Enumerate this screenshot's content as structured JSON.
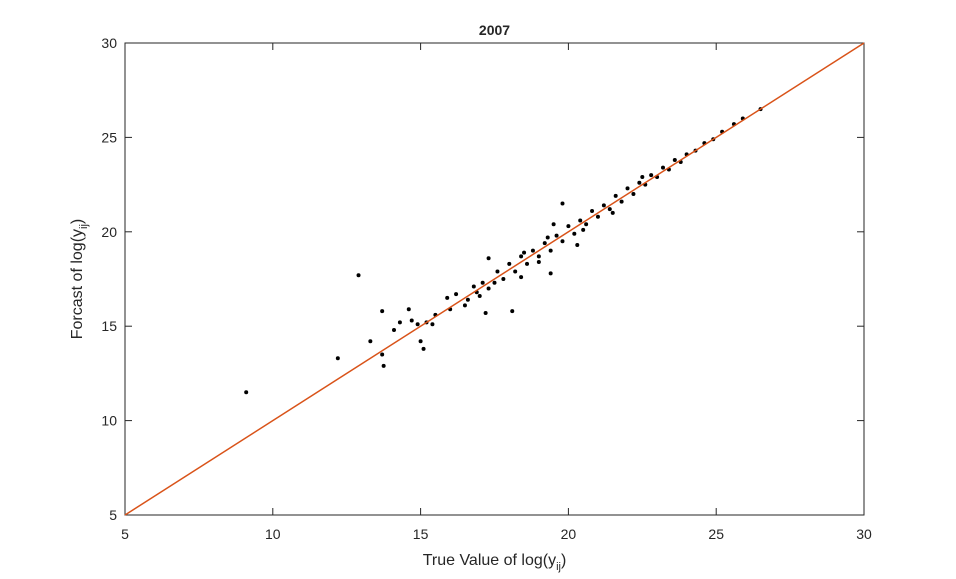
{
  "chart_data": {
    "type": "scatter",
    "title": "2007",
    "xlabel": {
      "text": "True Value of log(y",
      "sub": "ij",
      "end": ")"
    },
    "ylabel": {
      "text": "Forcast of log(y",
      "sub": "ij",
      "end": ")"
    },
    "xlim": [
      5,
      30
    ],
    "ylim": [
      5,
      30
    ],
    "xticks": [
      5,
      10,
      15,
      20,
      25,
      30
    ],
    "yticks": [
      5,
      10,
      15,
      20,
      25,
      30
    ],
    "grid": false,
    "series": [
      {
        "color": "#000000",
        "x": [
          9.1,
          12.2,
          12.9,
          13.3,
          13.7,
          13.75,
          13.7,
          14.1,
          14.3,
          14.6,
          14.7,
          14.9,
          15.0,
          15.1,
          15.2,
          15.4,
          15.5,
          15.9,
          16.0,
          16.2,
          16.5,
          16.8,
          17.2,
          17.3,
          17.5,
          18.1,
          18.4,
          19.0,
          19.4,
          19.5,
          19.8,
          20.3,
          16.6,
          16.9,
          17.1,
          17.3,
          17.6,
          17.8,
          18.0,
          18.2,
          18.4,
          18.6,
          18.8,
          19.0,
          19.2,
          19.4,
          19.6,
          19.8,
          20.0,
          20.2,
          20.4,
          20.6,
          20.8,
          21.0,
          21.2,
          21.4,
          21.6,
          21.8,
          22.0,
          22.2,
          22.4,
          22.6,
          22.8,
          23.0,
          23.2,
          23.4,
          23.6,
          23.8,
          24.0,
          24.3,
          24.6,
          24.9,
          25.2,
          25.6,
          25.9,
          26.5,
          17.0,
          18.5,
          19.3,
          20.5,
          21.5,
          22.5
        ],
        "values": [
          11.5,
          13.3,
          17.7,
          14.2,
          13.5,
          12.9,
          15.8,
          14.8,
          15.2,
          15.9,
          15.3,
          15.1,
          14.2,
          13.8,
          15.2,
          15.1,
          15.6,
          16.5,
          15.9,
          16.7,
          16.1,
          17.1,
          15.7,
          18.6,
          17.3,
          15.8,
          17.6,
          18.4,
          17.8,
          20.4,
          21.5,
          19.3,
          16.4,
          16.8,
          17.3,
          17.0,
          17.9,
          17.5,
          18.3,
          17.9,
          18.7,
          18.3,
          19.0,
          18.7,
          19.4,
          19.0,
          19.8,
          19.5,
          20.3,
          19.9,
          20.6,
          20.4,
          21.1,
          20.8,
          21.4,
          21.2,
          21.9,
          21.6,
          22.3,
          22.0,
          22.6,
          22.5,
          23.0,
          22.9,
          23.4,
          23.3,
          23.8,
          23.7,
          24.1,
          24.3,
          24.7,
          24.9,
          25.3,
          25.7,
          26.0,
          26.5,
          16.6,
          18.9,
          19.7,
          20.1,
          21.0,
          22.9
        ]
      }
    ],
    "reference_line": {
      "color": "#d95319",
      "x": [
        5,
        30
      ],
      "values": [
        5,
        30
      ]
    }
  }
}
